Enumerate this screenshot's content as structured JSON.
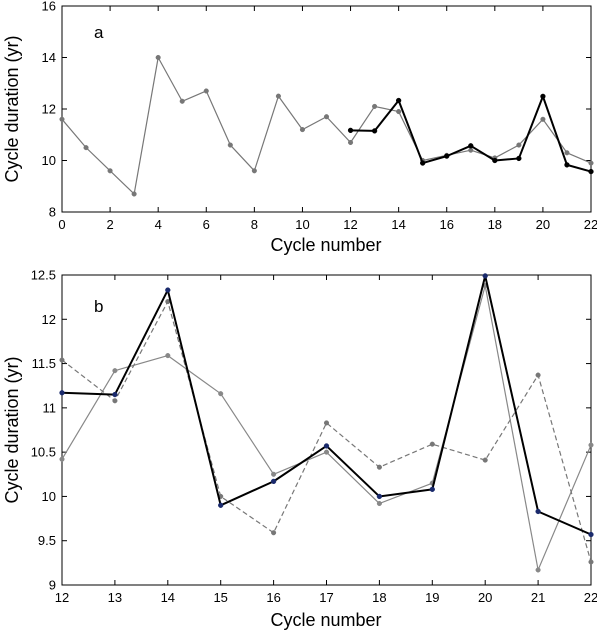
{
  "chart_data": [
    {
      "type": "line",
      "panel_label": "a",
      "xlabel": "Cycle number",
      "ylabel": "Cycle duration (yr)",
      "xlim": [
        0,
        22
      ],
      "ylim": [
        8,
        16
      ],
      "xticks": [
        0,
        2,
        4,
        6,
        8,
        10,
        12,
        14,
        16,
        18,
        20,
        22
      ],
      "yticks": [
        8,
        10,
        12,
        14,
        16
      ],
      "grid": false,
      "series": [
        {
          "color": "#777777",
          "style": "solid",
          "marker_color": "#777777",
          "x": [
            0,
            1,
            2,
            3,
            4,
            5,
            6,
            7,
            8,
            9,
            10,
            11,
            12,
            13,
            14,
            15,
            16,
            17,
            18,
            19,
            20,
            21,
            22
          ],
          "y": [
            11.6,
            10.5,
            9.6,
            8.7,
            14.0,
            12.3,
            12.7,
            10.6,
            9.6,
            12.5,
            11.2,
            11.7,
            10.7,
            12.1,
            11.9,
            10.0,
            10.2,
            10.4,
            10.1,
            10.6,
            11.6,
            10.3,
            9.9
          ]
        },
        {
          "color": "#000000",
          "style": "solid",
          "marker_color": "#000000",
          "x": [
            12,
            13,
            14,
            15,
            16,
            17,
            18,
            19,
            20,
            21,
            22
          ],
          "y": [
            11.17,
            11.15,
            12.33,
            9.9,
            10.17,
            10.57,
            10.0,
            10.08,
            12.49,
            9.83,
            9.57
          ]
        }
      ]
    },
    {
      "type": "line",
      "panel_label": "b",
      "xlabel": "Cycle number",
      "ylabel": "Cycle duration (yr)",
      "xlim": [
        12,
        22
      ],
      "ylim": [
        9,
        12.5
      ],
      "xticks": [
        12,
        13,
        14,
        15,
        16,
        17,
        18,
        19,
        20,
        21,
        22
      ],
      "yticks": [
        9,
        9.5,
        10,
        10.5,
        11,
        11.5,
        12,
        12.5
      ],
      "grid": false,
      "series": [
        {
          "color": "#888888",
          "style": "solid",
          "marker_color": "#888888",
          "x": [
            12,
            13,
            14,
            15,
            16,
            17,
            18,
            19,
            20,
            21,
            22
          ],
          "y": [
            10.42,
            11.42,
            11.59,
            11.16,
            10.25,
            10.5,
            9.92,
            10.15,
            12.38,
            9.17,
            10.58
          ]
        },
        {
          "color": "#777777",
          "style": "dashed",
          "marker_color": "#777777",
          "x": [
            12,
            13,
            14,
            15,
            16,
            17,
            18,
            19,
            20,
            21,
            22
          ],
          "y": [
            11.54,
            11.08,
            12.2,
            10.0,
            9.59,
            10.83,
            10.33,
            10.59,
            10.41,
            11.37,
            9.26
          ]
        },
        {
          "color": "#000000",
          "style": "solid",
          "marker_color": "#1a2a6c",
          "x": [
            12,
            13,
            14,
            15,
            16,
            17,
            18,
            19,
            20,
            21,
            22
          ],
          "y": [
            11.17,
            11.15,
            12.33,
            9.9,
            10.17,
            10.57,
            10.0,
            10.08,
            12.49,
            9.83,
            9.57
          ]
        }
      ]
    }
  ]
}
